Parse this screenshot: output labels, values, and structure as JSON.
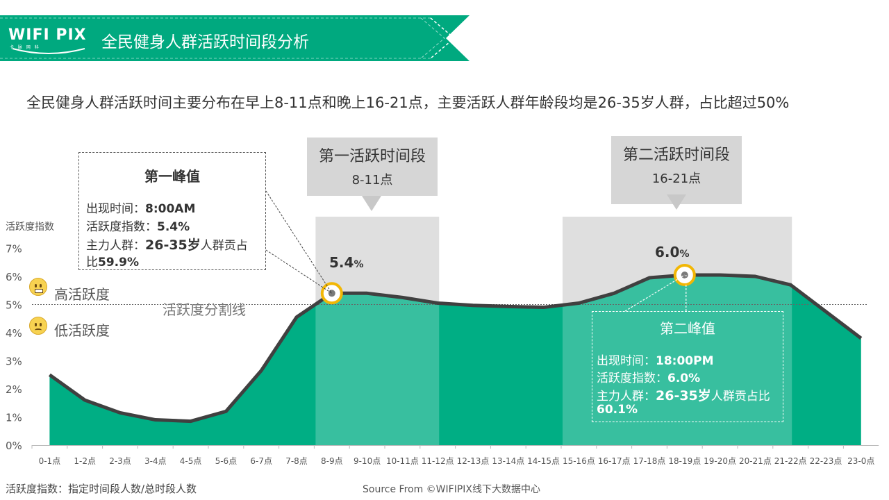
{
  "header": {
    "logo": "WIFI PIX",
    "logo_sub": "卡 脉 网 科",
    "title": "全民健身人群活跃时间段分析",
    "colors": {
      "banner": "#00a97f",
      "area": "#00ae84",
      "line": "#404040",
      "highlight": "#d6d6d6",
      "marker": "#f2b705"
    }
  },
  "subtitle": "全民健身人群活跃时间主要分布在早上8-11点和晚上16-21点，主要活跃人群年龄段均是26-35岁人群，占比超过50%",
  "periods": [
    {
      "title": "第一活跃时间段",
      "range": "8-11点"
    },
    {
      "title": "第二活跃时间段",
      "range": "16-21点"
    }
  ],
  "peak1": {
    "title": "第一峰值",
    "time_label": "出现时间：",
    "time_value": "8:00AM",
    "index_label": "活跃度指数：",
    "index_value": "5.4%",
    "group_label": "主力人群：",
    "group_value": "26-35岁",
    "group_suffix": "人群贡占",
    "group_line2_prefix": "比",
    "group_share": "59.9%",
    "value_num": "5.4",
    "value_unit": "%"
  },
  "peak2": {
    "title": "第二峰值",
    "time_label": "出现时间：",
    "time_value": "18:00PM",
    "index_label": "活跃度指数：",
    "index_value": "6.0%",
    "group_label": "主力人群：",
    "group_value": "26-35岁",
    "group_suffix": "人群贡占比",
    "group_share": "60.1%",
    "value_num": "6.0",
    "value_unit": "%"
  },
  "levels": {
    "high": "高活跃度",
    "low": "低活跃度",
    "divider": "活跃度分割线"
  },
  "footer": {
    "definition": "活跃度指数：指定时间段人数/总时段人数",
    "source": "Source From ©WIFIPIX线下大数据中心"
  },
  "chart_data": {
    "type": "area",
    "ylabel": "活跃度指数",
    "ylim": [
      0,
      7
    ],
    "yticks": [
      "0%",
      "1%",
      "2%",
      "3%",
      "4%",
      "5%",
      "6%",
      "7%"
    ],
    "categories": [
      "0-1点",
      "1-2点",
      "2-3点",
      "3-4点",
      "4-5点",
      "5-6点",
      "6-7点",
      "7-8点",
      "8-9点",
      "9-10点",
      "10-11点",
      "11-12点",
      "12-13点",
      "13-14点",
      "14-15点",
      "15-16点",
      "16-17点",
      "17-18点",
      "18-19点",
      "19-20点",
      "20-21点",
      "21-22点",
      "22-23点",
      "23-0点"
    ],
    "values": [
      2.5,
      1.6,
      1.15,
      0.9,
      0.85,
      1.2,
      2.65,
      4.55,
      5.4,
      5.4,
      5.25,
      5.05,
      4.97,
      4.93,
      4.9,
      5.05,
      5.4,
      5.95,
      6.05,
      6.05,
      6.0,
      5.7,
      null,
      3.8
    ],
    "threshold": 5,
    "highlight_ranges": [
      [
        "8-9点",
        "11-12点"
      ],
      [
        "15-16点",
        "21-22点"
      ]
    ],
    "peaks": [
      "8-9点",
      "18-19点"
    ],
    "grid": false
  }
}
